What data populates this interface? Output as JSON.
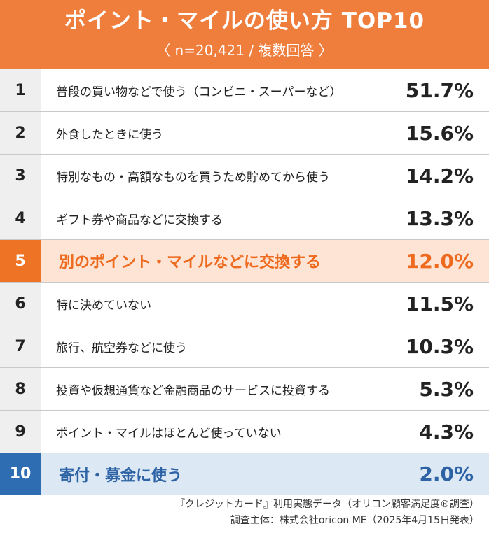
{
  "header": {
    "title": "ポイント・マイルの使い方 TOP10",
    "subtitle": "〈 n=20,421 / 複数回答 〉"
  },
  "footer": {
    "line1": "『クレジットカード』利用実態データ（オリコン顧客満足度®調査）",
    "line2": "調査主体：株式会社oricon ME（2025年4月15日発表）"
  },
  "colors": {
    "header": "#ef7d3c",
    "highlight_orange": "#ee7325",
    "highlight_orange_bg": "#fde4d5",
    "highlight_blue": "#2f6db3",
    "highlight_blue_bg": "#dce8f4"
  },
  "chart_data": {
    "type": "table",
    "title": "ポイント・マイルの使い方 TOP10",
    "subtitle": "〈 n=20,421 / 複数回答 〉",
    "rows": [
      {
        "rank": "1",
        "label": "普段の買い物などで使う（コンビニ・スーパーなど）",
        "value": "51.7%",
        "percent": 51.7
      },
      {
        "rank": "2",
        "label": "外食したときに使う",
        "value": "15.6%",
        "percent": 15.6
      },
      {
        "rank": "3",
        "label": "特別なもの・高額なものを買うため貯めてから使う",
        "value": "14.2%",
        "percent": 14.2
      },
      {
        "rank": "4",
        "label": "ギフト券や商品などに交換する",
        "value": "13.3%",
        "percent": 13.3
      },
      {
        "rank": "5",
        "label": "別のポイント・マイルなどに交換する",
        "value": "12.0%",
        "percent": 12.0,
        "highlight": "orange"
      },
      {
        "rank": "6",
        "label": "特に決めていない",
        "value": "11.5%",
        "percent": 11.5
      },
      {
        "rank": "7",
        "label": "旅行、航空券などに使う",
        "value": "10.3%",
        "percent": 10.3
      },
      {
        "rank": "8",
        "label": "投資や仮想通貨など金融商品のサービスに投資する",
        "value": "5.3%",
        "percent": 5.3
      },
      {
        "rank": "9",
        "label": "ポイント・マイルはほとんど使っていない",
        "value": "4.3%",
        "percent": 4.3
      },
      {
        "rank": "10",
        "label": "寄付・募金に使う",
        "value": "2.0%",
        "percent": 2.0,
        "highlight": "blue"
      }
    ]
  }
}
